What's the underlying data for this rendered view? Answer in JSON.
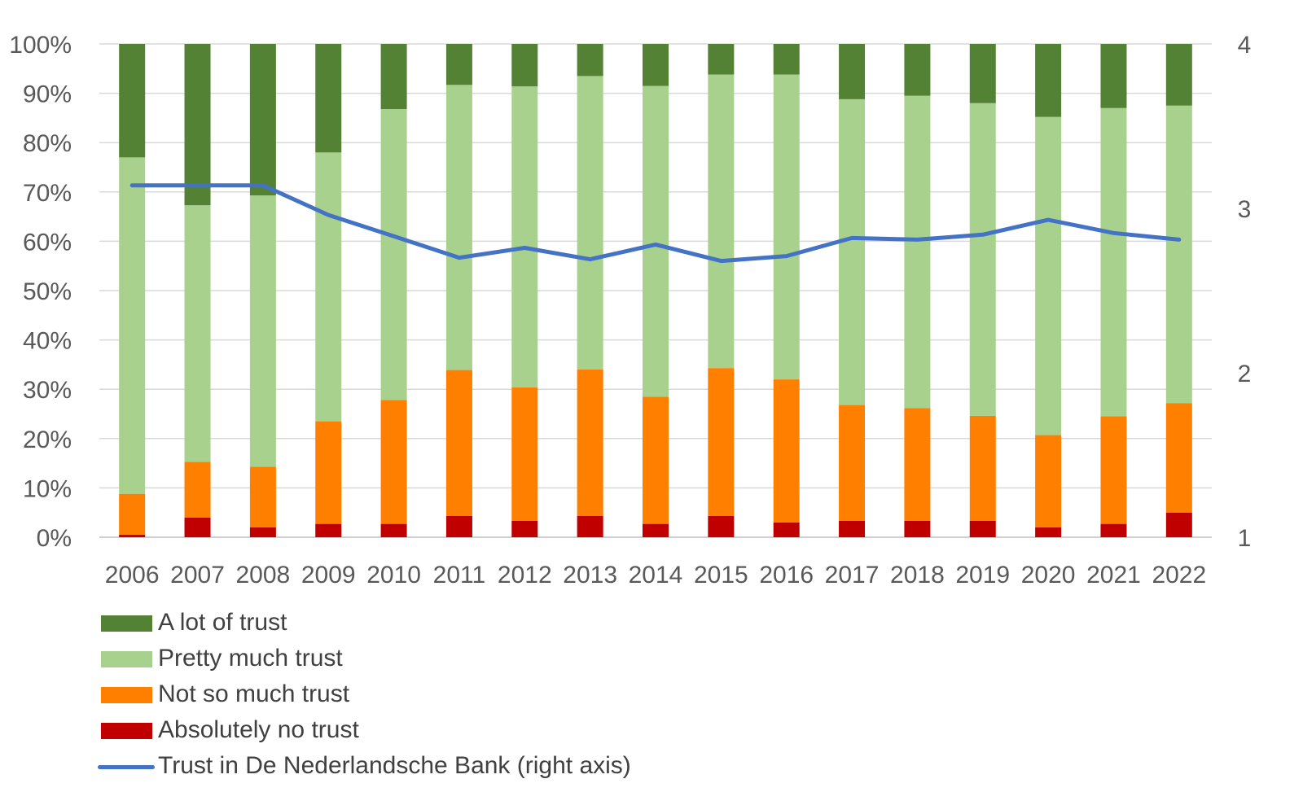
{
  "chart_data": {
    "type": "bar",
    "stacked": true,
    "categories": [
      "2006",
      "2007",
      "2008",
      "2009",
      "2010",
      "2011",
      "2012",
      "2013",
      "2014",
      "2015",
      "2016",
      "2017",
      "2018",
      "2019",
      "2020",
      "2021",
      "2022"
    ],
    "series": [
      {
        "name": "Absolutely no trust",
        "color": "#c00000",
        "values": [
          0.5,
          4,
          2,
          2.7,
          2.7,
          4.3,
          3.3,
          4.3,
          2.7,
          4.3,
          3,
          3.3,
          3.3,
          3.3,
          2,
          2.7,
          5
        ]
      },
      {
        "name": "Not so much trust",
        "color": "#ff7f00",
        "values": [
          8.3,
          11.3,
          12.3,
          20.8,
          25.1,
          29.6,
          27.1,
          29.7,
          25.8,
          30,
          29,
          23.5,
          22.9,
          21.3,
          18.7,
          21.8,
          22.2
        ]
      },
      {
        "name": "Pretty much trust",
        "color": "#a9d18e",
        "values": [
          68.2,
          52,
          55,
          54.5,
          59,
          57.8,
          61,
          59.5,
          63,
          59.5,
          61.8,
          62,
          63.3,
          63.4,
          64.5,
          62.5,
          60.3
        ]
      },
      {
        "name": "A lot of trust",
        "color": "#548235",
        "values": [
          23,
          32.7,
          30.7,
          22,
          13.2,
          8.3,
          8.6,
          6.5,
          8.5,
          6.2,
          6.2,
          11.2,
          10.5,
          12,
          14.8,
          13,
          12.5
        ]
      }
    ],
    "line_series": {
      "name": "Trust in De Nederlandsche Bank (right axis)",
      "color": "#4472c4",
      "axis": "right",
      "values": [
        3.14,
        3.14,
        3.14,
        2.96,
        2.83,
        2.7,
        2.76,
        2.69,
        2.78,
        2.68,
        2.71,
        2.82,
        2.81,
        2.84,
        2.93,
        2.85,
        2.81
      ]
    },
    "yticks_left": [
      "0%",
      "10%",
      "20%",
      "30%",
      "40%",
      "50%",
      "60%",
      "70%",
      "80%",
      "90%",
      "100%"
    ],
    "ylim_left": [
      0,
      100
    ],
    "yticks_right": [
      "1",
      "2",
      "3",
      "4"
    ],
    "ylim_right": [
      1,
      4
    ],
    "grid": true,
    "legend_position": "bottom-left",
    "title": "",
    "xlabel": "",
    "ylabel": ""
  },
  "legend": {
    "items": [
      {
        "label": "A lot of trust",
        "color": "#548235",
        "kind": "box"
      },
      {
        "label": "Pretty much trust",
        "color": "#a9d18e",
        "kind": "box"
      },
      {
        "label": "Not so much trust",
        "color": "#ff7f00",
        "kind": "box"
      },
      {
        "label": "Absolutely no trust",
        "color": "#c00000",
        "kind": "box"
      },
      {
        "label": "Trust in De Nederlandsche Bank (right axis)",
        "color": "#4472c4",
        "kind": "line"
      }
    ]
  }
}
